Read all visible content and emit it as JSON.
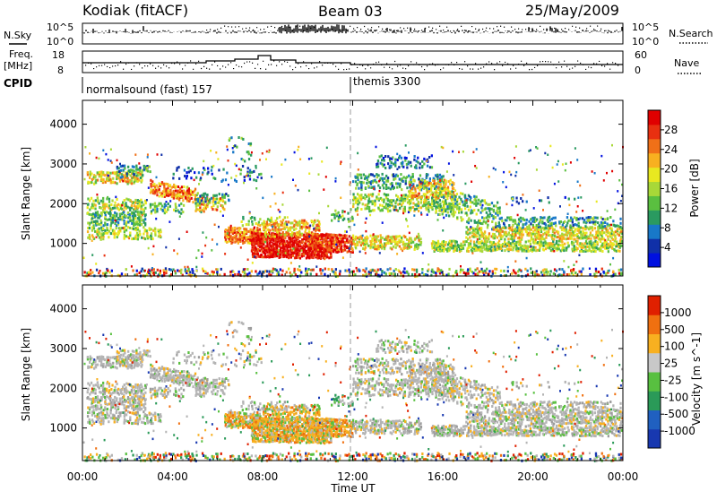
{
  "header": {
    "station": "Kodiak (fitACF)",
    "beam": "Beam 03",
    "date": "25/May/2009"
  },
  "top_panels": {
    "nsky_label": "N.Sky",
    "nsearch_label": "N.Search",
    "nsky_ticks": [
      "10^5",
      "10^0"
    ],
    "nsearch_ticks": [
      "10^5",
      "10^0"
    ],
    "freq_label_1": "Freq.",
    "freq_label_2": "[MHz]",
    "freq_ticks": [
      "18",
      "8"
    ],
    "nave_label": "Nave",
    "nave_ticks": [
      "60",
      "0"
    ],
    "cpid_label": "CPID",
    "cpid_segments": [
      {
        "name": "normalsound (fast) 157",
        "start_hour": 0,
        "end_hour": 12
      },
      {
        "name": "themis 3300",
        "start_hour": 12,
        "end_hour": 24
      }
    ]
  },
  "chart_data": [
    {
      "type": "heatmap",
      "quantity": "Power",
      "ylabel": "Slant Range [km]",
      "xlabel": "",
      "y_ticks": [
        1000,
        2000,
        3000,
        4000
      ],
      "ylim": [
        180,
        4600
      ],
      "xlim_hours": [
        0,
        24
      ],
      "colorbar_label": "Power [dB]",
      "colorbar_ticks": [
        "28",
        "24",
        "20",
        "16",
        "12",
        "8",
        "4"
      ],
      "colorbar_colors": [
        "#0010e0",
        "#1030a8",
        "#1878c8",
        "#2a9a60",
        "#5abf40",
        "#a8d838",
        "#e8e820",
        "#f8b020",
        "#f07018",
        "#e83010",
        "#e00000"
      ],
      "ground_scatter_color": "#b4b4b4"
    },
    {
      "type": "heatmap",
      "quantity": "Velocity",
      "ylabel": "Slant Range [km]",
      "xlabel": "Time UT",
      "y_ticks": [
        1000,
        2000,
        3000,
        4000
      ],
      "ylim": [
        180,
        4600
      ],
      "xlim_hours": [
        0,
        24
      ],
      "x_tick_labels": [
        "00:00",
        "04:00",
        "08:00",
        "12:00",
        "16:00",
        "20:00",
        "00:00"
      ],
      "colorbar_label": "Velocity [m s^-1]",
      "colorbar_ticks": [
        "1000",
        "500",
        "100",
        "25",
        "-25",
        "-100",
        "-500",
        "-1000"
      ],
      "colorbar_colors": [
        "#1838b0",
        "#2060c0",
        "#2a9a58",
        "#58c040",
        "#c8c8c8",
        "#f8b020",
        "#f07010",
        "#e02000"
      ],
      "ground_scatter_color": "#b4b4b4"
    }
  ]
}
